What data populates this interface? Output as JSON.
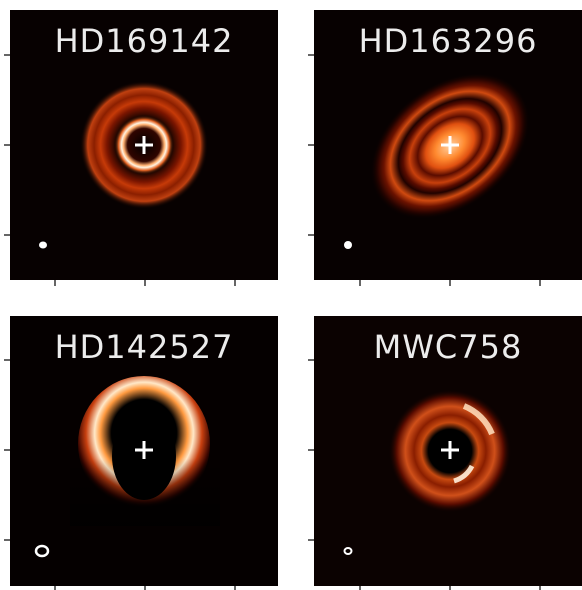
{
  "panels": [
    {
      "name": "HD169142"
    },
    {
      "name": "HD163296"
    },
    {
      "name": "HD142527"
    },
    {
      "name": "MWC758"
    }
  ],
  "colors": {
    "background": "#050000",
    "ring_dark": "#5a0a00",
    "ring_mid": "#b32a00",
    "ring_bright": "#ff7a1a",
    "ring_peak": "#fff1d8",
    "marker": "#ffffff"
  },
  "icons": {
    "star_position": "plus-marker-icon",
    "beam": "beam-ellipse-icon"
  }
}
